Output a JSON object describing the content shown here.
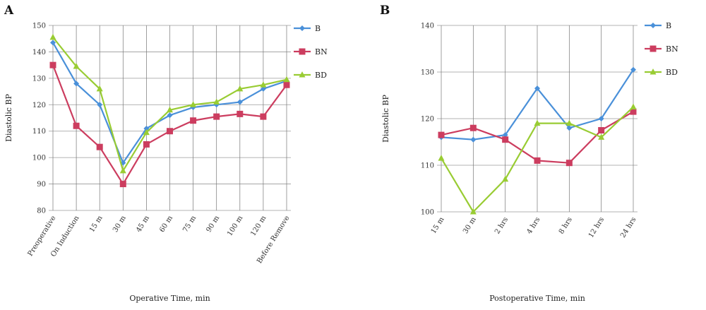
{
  "chart_data": [
    {
      "panel": "A",
      "type": "line",
      "xlabel": "Operative Time, min",
      "ylabel": "Diastolic BP",
      "ylim": [
        80,
        150
      ],
      "yticks": [
        80,
        90,
        100,
        110,
        120,
        130,
        140,
        150
      ],
      "categories": [
        "Preoperative",
        "On Induction",
        "15 m",
        "30 m",
        "45 m",
        "60 m",
        "75 m",
        "90 m",
        "100 m",
        "120 m",
        "Before Remove"
      ],
      "grid": "horizontal and vertical",
      "legend_position": "right",
      "series": [
        {
          "name": "B",
          "color": "#4a90d9",
          "marker": "diamond",
          "values": [
            143.5,
            128,
            120,
            98,
            111,
            116,
            119,
            120,
            121,
            126,
            129
          ]
        },
        {
          "name": "BN",
          "color": "#cc3d5f",
          "marker": "square",
          "values": [
            135,
            112,
            104,
            90,
            105,
            110,
            114,
            115.5,
            116.5,
            115.5,
            127.5
          ]
        },
        {
          "name": "BD",
          "color": "#99cc33",
          "marker": "triangle",
          "values": [
            145.5,
            134.5,
            126,
            95,
            109.5,
            118,
            120,
            121,
            126,
            127.5,
            129.5
          ]
        }
      ]
    },
    {
      "panel": "B",
      "type": "line",
      "xlabel": "Postoperative Time, min",
      "ylabel": "Diastolic BP",
      "ylim": [
        100,
        140
      ],
      "yticks": [
        100,
        110,
        120,
        130,
        140
      ],
      "categories": [
        "15 m",
        "30 m",
        "2 hrs",
        "4 hrs",
        "8 hrs",
        "12 hrs",
        "24 hrs"
      ],
      "grid": "horizontal and vertical",
      "legend_position": "right",
      "series": [
        {
          "name": "B",
          "color": "#4a90d9",
          "marker": "diamond",
          "values": [
            116,
            115.5,
            116.5,
            126.5,
            118,
            120,
            130.5
          ]
        },
        {
          "name": "BN",
          "color": "#cc3d5f",
          "marker": "square",
          "values": [
            116.5,
            118,
            115.5,
            111,
            110.5,
            117.5,
            121.5
          ]
        },
        {
          "name": "BD",
          "color": "#99cc33",
          "marker": "triangle",
          "values": [
            111.5,
            100,
            107,
            119,
            119,
            116,
            122.5
          ]
        }
      ]
    }
  ]
}
